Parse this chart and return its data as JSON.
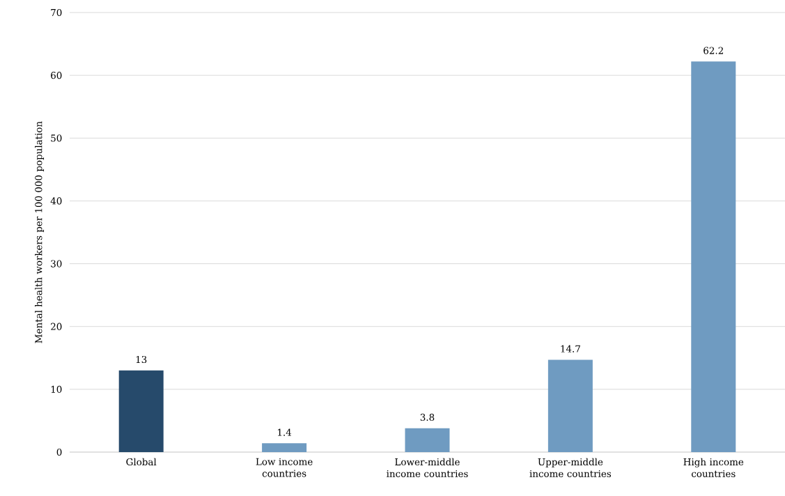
{
  "chart_data": {
    "type": "bar",
    "ylabel": "Mental health workers per 100 000 population",
    "categories": [
      "Global",
      "Low income countries",
      "Lower-middle income countries",
      "Upper-middle income countries",
      "High income countries"
    ],
    "values": [
      13,
      1.4,
      3.8,
      14.7,
      62.2
    ],
    "colors": [
      "#264a6b",
      "#6f9bc1",
      "#6f9bc1",
      "#6f9bc1",
      "#6f9bc1"
    ],
    "ylim": [
      0,
      70
    ],
    "yticks": [
      0,
      10,
      20,
      30,
      40,
      50,
      60,
      70
    ],
    "grid": "y",
    "data_labels": true
  }
}
